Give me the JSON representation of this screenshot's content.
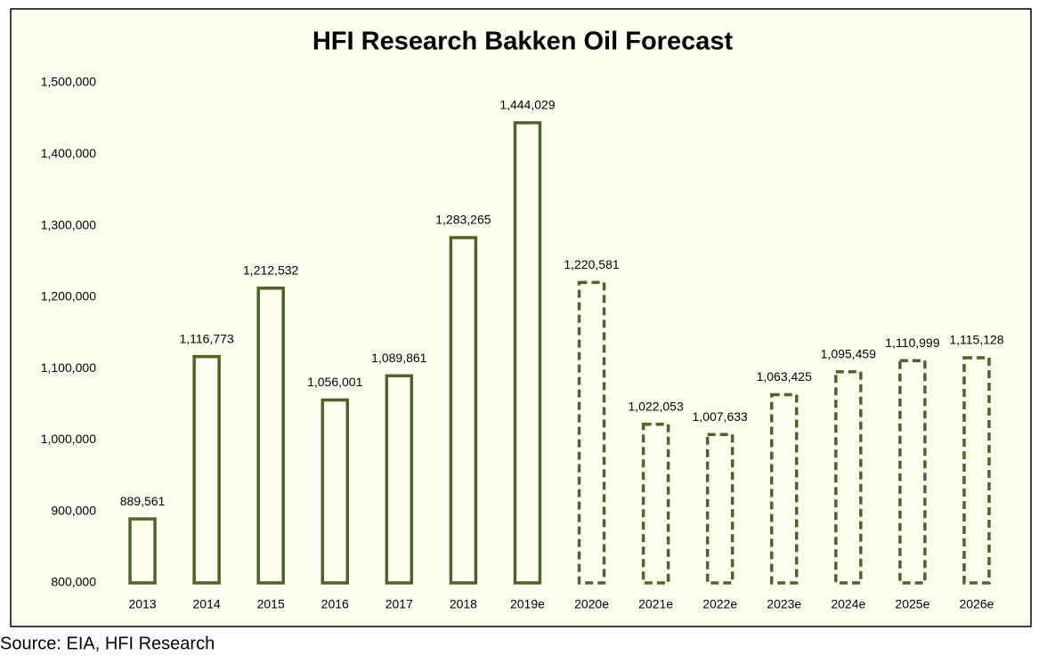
{
  "chart_data": {
    "type": "bar",
    "title": "HFI Research Bakken Oil Forecast",
    "categories": [
      "2013",
      "2014",
      "2015",
      "2016",
      "2017",
      "2018",
      "2019e",
      "2020e",
      "2021e",
      "2022e",
      "2023e",
      "2024e",
      "2025e",
      "2026e"
    ],
    "values": [
      889561,
      1116773,
      1212532,
      1056001,
      1089861,
      1283265,
      1444029,
      1220581,
      1022053,
      1007633,
      1063425,
      1095459,
      1110999,
      1115128
    ],
    "value_labels": [
      "889,561",
      "1,116,773",
      "1,212,532",
      "1,056,001",
      "1,089,861",
      "1,283,265",
      "1,444,029",
      "1,220,581",
      "1,022,053",
      "1,007,633",
      "1,063,425",
      "1,095,459",
      "1,110,999",
      "1,115,128"
    ],
    "line_styles": [
      "solid",
      "solid",
      "solid",
      "solid",
      "solid",
      "solid",
      "solid",
      "dashed",
      "dashed",
      "dashed",
      "dashed",
      "dashed",
      "dashed",
      "dashed"
    ],
    "color": "#4f6228",
    "ylim": [
      800000,
      1500000
    ],
    "yticks": [
      {
        "value": 800000,
        "label": "800,000"
      },
      {
        "value": 900000,
        "label": "900,000"
      },
      {
        "value": 1000000,
        "label": "1,000,000"
      },
      {
        "value": 1100000,
        "label": "1,100,000"
      },
      {
        "value": 1200000,
        "label": "1,200,000"
      },
      {
        "value": 1300000,
        "label": "1,300,000"
      },
      {
        "value": 1400000,
        "label": "1,400,000"
      },
      {
        "value": 1500000,
        "label": "1,500,000"
      }
    ],
    "grid": false,
    "source": "Source: EIA, HFI Research"
  }
}
